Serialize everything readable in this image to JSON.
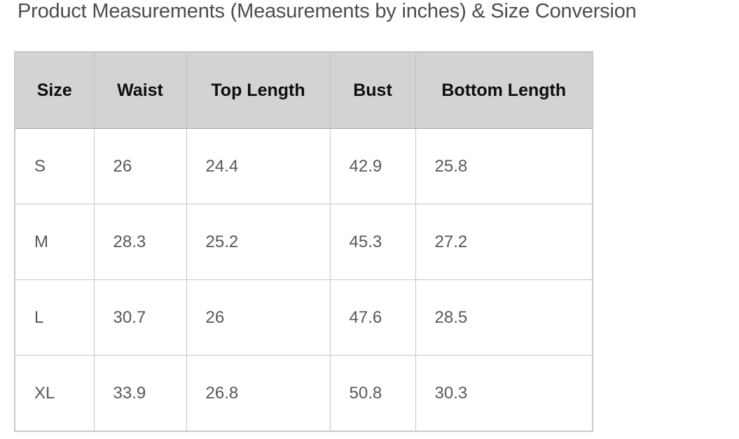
{
  "page": {
    "title": "Product Measurements (Measurements by inches) & Size Conversion"
  },
  "colors": {
    "page_background": "#ffffff",
    "header_background": "#d3d3d3",
    "grid_border": "#c6c6c6",
    "title_text": "#4d4d50",
    "header_text": "#0e0e0e",
    "cell_text": "#58585a"
  },
  "table": {
    "headers": [
      "Size",
      "Waist",
      "Top Length",
      "Bust",
      "Bottom Length"
    ],
    "rows": [
      {
        "cells": [
          "S",
          "26",
          "24.4",
          "42.9",
          "25.8"
        ]
      },
      {
        "cells": [
          "M",
          "28.3",
          "25.2",
          "45.3",
          "27.2"
        ]
      },
      {
        "cells": [
          "L",
          "30.7",
          "26",
          "47.6",
          "28.5"
        ]
      },
      {
        "cells": [
          "XL",
          "33.9",
          "26.8",
          "50.8",
          "30.3"
        ]
      }
    ]
  },
  "chart_data": {
    "type": "table",
    "title": "Product Measurements (Measurements by inches) & Size Conversion",
    "unit": "inches",
    "columns": [
      "Size",
      "Waist",
      "Top Length",
      "Bust",
      "Bottom Length"
    ],
    "rows": [
      [
        "S",
        26,
        24.4,
        42.9,
        25.8
      ],
      [
        "M",
        28.3,
        25.2,
        45.3,
        27.2
      ],
      [
        "L",
        30.7,
        26,
        47.6,
        28.5
      ],
      [
        "XL",
        33.9,
        26.8,
        50.8,
        30.3
      ]
    ]
  }
}
